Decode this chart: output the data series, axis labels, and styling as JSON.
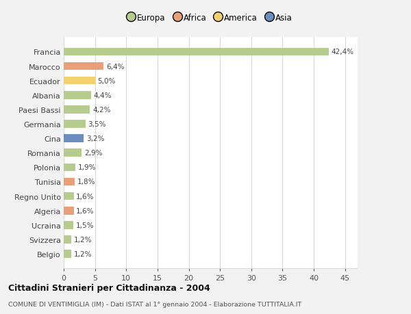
{
  "categories": [
    "Francia",
    "Marocco",
    "Ecuador",
    "Albania",
    "Paesi Bassi",
    "Germania",
    "Cina",
    "Romania",
    "Polonia",
    "Tunisia",
    "Regno Unito",
    "Algeria",
    "Ucraina",
    "Svizzera",
    "Belgio"
  ],
  "values": [
    42.4,
    6.4,
    5.0,
    4.4,
    4.2,
    3.5,
    3.2,
    2.9,
    1.9,
    1.8,
    1.6,
    1.6,
    1.5,
    1.2,
    1.2
  ],
  "labels": [
    "42,4%",
    "6,4%",
    "5,0%",
    "4,4%",
    "4,2%",
    "3,5%",
    "3,2%",
    "2,9%",
    "1,9%",
    "1,8%",
    "1,6%",
    "1,6%",
    "1,5%",
    "1,2%",
    "1,2%"
  ],
  "bar_colors": [
    "#b5cc8e",
    "#e8a07a",
    "#f5d06e",
    "#b5cc8e",
    "#b5cc8e",
    "#b5cc8e",
    "#6a8fbe",
    "#b5cc8e",
    "#b5cc8e",
    "#e8a07a",
    "#b5cc8e",
    "#e8a07a",
    "#b5cc8e",
    "#b5cc8e",
    "#b5cc8e"
  ],
  "legend_labels": [
    "Europa",
    "Africa",
    "America",
    "Asia"
  ],
  "legend_colors": [
    "#b5cc8e",
    "#e8a07a",
    "#f5d06e",
    "#6a8fbe"
  ],
  "title": "Cittadini Stranieri per Cittadinanza - 2004",
  "subtitle": "COMUNE DI VENTIMIGLIA (IM) - Dati ISTAT al 1° gennaio 2004 - Elaborazione TUTTITALIA.IT",
  "xlim": [
    0,
    47
  ],
  "xticks": [
    0,
    5,
    10,
    15,
    20,
    25,
    30,
    35,
    40,
    45
  ],
  "bg_color": "#f2f2f2",
  "plot_bg_color": "#ffffff",
  "grid_color": "#d8d8d8",
  "bar_height": 0.55
}
